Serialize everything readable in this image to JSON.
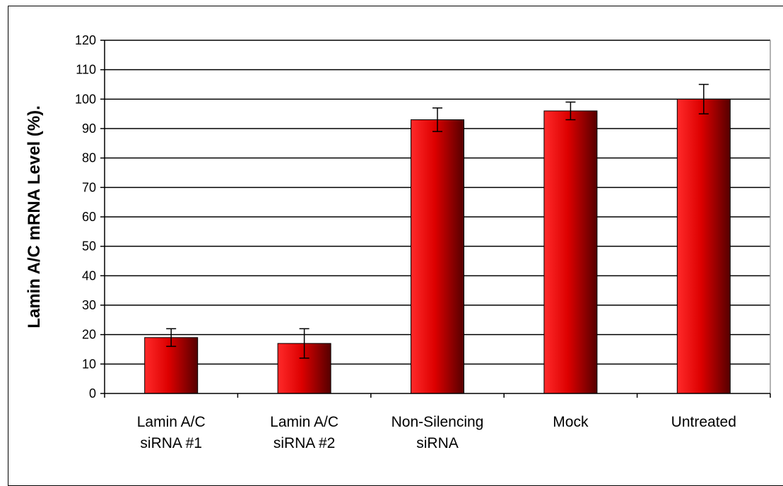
{
  "chart_data": {
    "type": "bar",
    "title": "",
    "xlabel": "",
    "ylabel": "Lamin A/C mRNA Level (%).",
    "ylim": [
      0,
      120
    ],
    "y_ticks": [
      "0",
      "10",
      "20",
      "30",
      "40",
      "50",
      "60",
      "70",
      "80",
      "90",
      "100",
      "110",
      "120"
    ],
    "grid": true,
    "legend": "none",
    "categories": [
      [
        "Lamin A/C",
        "siRNA #1"
      ],
      [
        "Lamin A/C",
        "siRNA #2"
      ],
      [
        "Non-Silencing",
        "siRNA"
      ],
      [
        "Mock"
      ],
      [
        "Untreated"
      ]
    ],
    "values": [
      19,
      17,
      93,
      96,
      100
    ],
    "error_bars": [
      [
        16,
        22
      ],
      [
        12,
        22
      ],
      [
        89,
        97
      ],
      [
        93,
        99
      ],
      [
        95,
        105
      ]
    ],
    "colors": {
      "bar_light": "#ff2a2a",
      "bar_mid": "#dd0000",
      "bar_dark": "#550000",
      "grid": "#000000",
      "axis": "#000000"
    }
  }
}
